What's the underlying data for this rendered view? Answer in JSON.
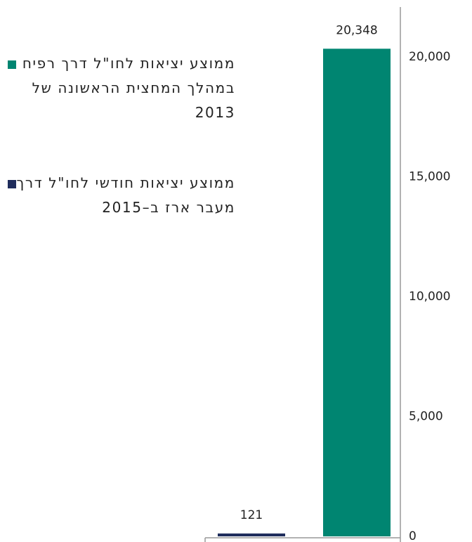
{
  "chart_data": {
    "type": "bar",
    "series": [
      {
        "name": "ממוצע יציאות לחו\"ל דרך רפיח במהלך המחצית הראשונה של 2013",
        "color": "#008571",
        "values": [
          20348
        ],
        "value_labels": [
          "20,348"
        ]
      },
      {
        "name": "ממוצע יציאות חודשי לחו\"ל דרך מעבר ארז ב–2015",
        "color": "#1f2d5c",
        "values": [
          121
        ],
        "value_labels": [
          "121"
        ]
      }
    ],
    "ylim": [
      0,
      22000
    ],
    "yticks": [
      0,
      {
        "value": 5000,
        "label": "5,000"
      },
      {
        "value": 10000,
        "label": "10,000"
      },
      {
        "value": 15000,
        "label": "15,000"
      },
      {
        "value": 20000,
        "label": "20,000"
      }
    ],
    "grid": false,
    "legend": "left"
  }
}
